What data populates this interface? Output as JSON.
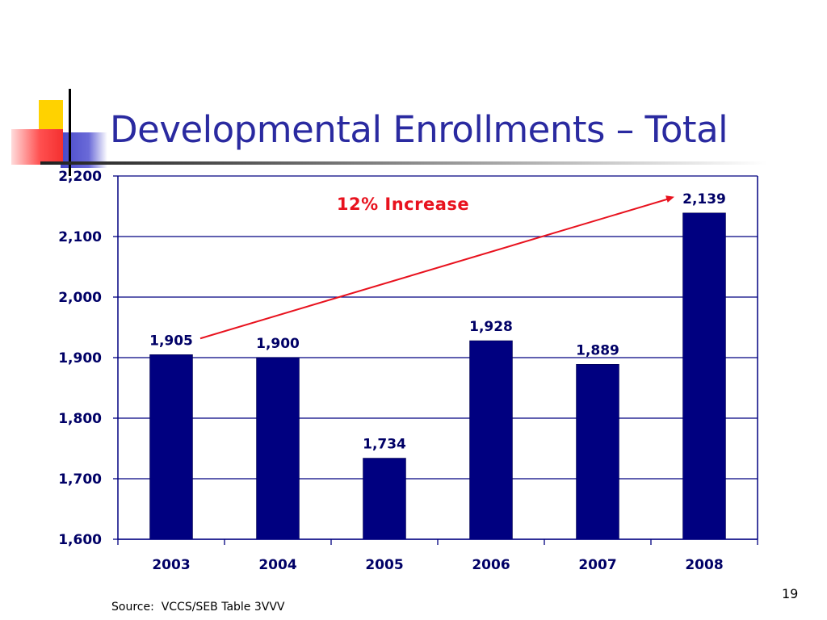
{
  "slide": {
    "title": "Developmental Enrollments – Total",
    "source": "Source:  VCCS/SEB Table 3VVV",
    "page_number": "19",
    "annotation": "12% Increase"
  },
  "colors": {
    "bar": "#000080",
    "grid": "#000080",
    "title": "#2a2aa0",
    "annotation": "#e8121e",
    "arrow": "#e8121e"
  },
  "chart_data": {
    "type": "bar",
    "categories": [
      "2003",
      "2004",
      "2005",
      "2006",
      "2007",
      "2008"
    ],
    "values": [
      1905,
      1900,
      1734,
      1928,
      1889,
      2139
    ],
    "data_labels": [
      "1,905",
      "1,900",
      "1,734",
      "1,928",
      "1,889",
      "2,139"
    ],
    "ylim": [
      1600,
      2200
    ],
    "yticks": [
      1600,
      1700,
      1800,
      1900,
      2000,
      2100,
      2200
    ],
    "ytick_labels": [
      "1,600",
      "1,700",
      "1,800",
      "1,900",
      "2,000",
      "2,100",
      "2,200"
    ],
    "grid": true,
    "annotation": {
      "text": "12% Increase",
      "arrow_from_category": "2003",
      "arrow_to_category": "2008"
    }
  }
}
